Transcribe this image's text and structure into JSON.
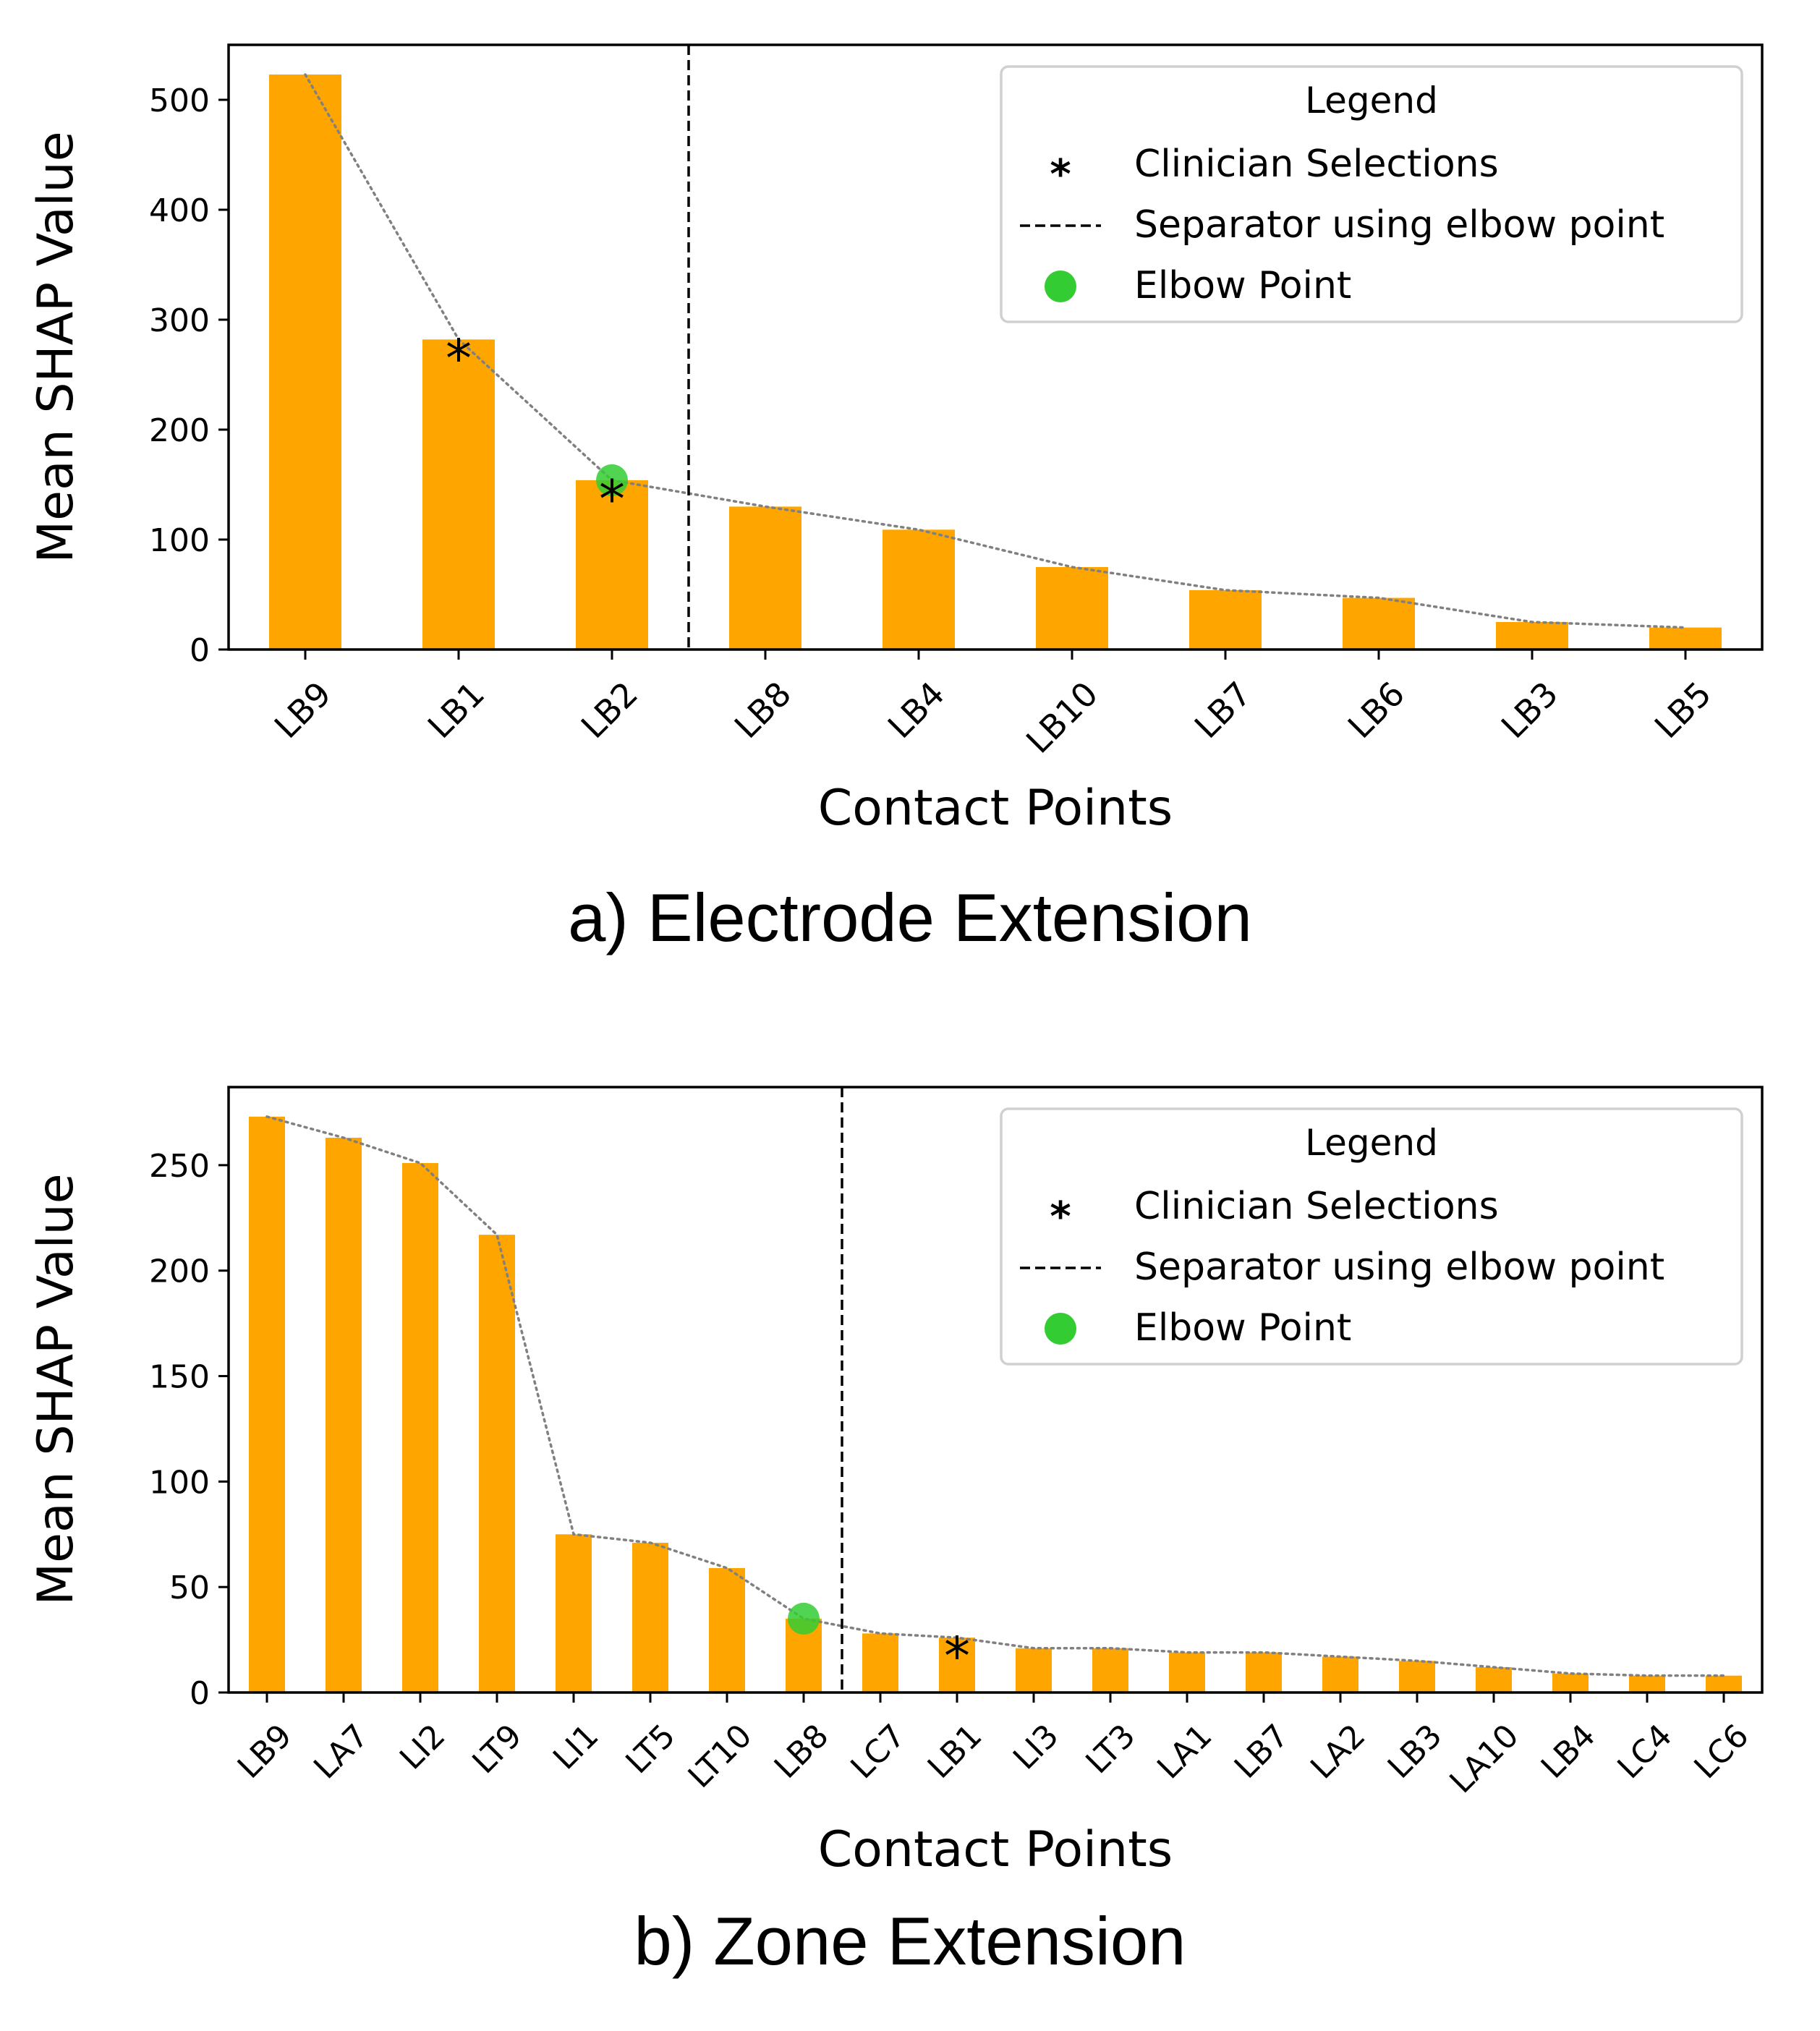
{
  "chart_data": [
    {
      "type": "bar",
      "caption": "a) Electrode Extension",
      "xlabel": "Contact Points",
      "ylabel": "Mean SHAP Value",
      "ylim": [
        0,
        550
      ],
      "yticks": [
        0,
        100,
        200,
        300,
        400,
        500
      ],
      "categories": [
        "LB9",
        "LB1",
        "LB2",
        "LB8",
        "LB4",
        "LB10",
        "LB7",
        "LB6",
        "LB3",
        "LB5"
      ],
      "values": [
        523,
        282,
        154,
        130,
        109,
        75,
        54,
        47,
        25,
        20
      ],
      "bar_color": "#ffa500",
      "trend_line": {
        "style": "dotted",
        "color": "#808080"
      },
      "clinician_selections": [
        {
          "category": "LB1",
          "value": 268
        },
        {
          "category": "LB2",
          "value": 140
        }
      ],
      "elbow_point": {
        "category": "LB2",
        "value": 154,
        "color": "#33cc33"
      },
      "separator_after_index": 2,
      "legend": {
        "title": "Legend",
        "position": "top-right",
        "entries": [
          "Clinician Selections",
          "Separator using elbow point",
          "Elbow Point"
        ]
      }
    },
    {
      "type": "bar",
      "caption": "b) Zone Extension",
      "xlabel": "Contact Points",
      "ylabel": "Mean SHAP Value",
      "ylim": [
        0,
        287
      ],
      "yticks": [
        0,
        50,
        100,
        150,
        200,
        250
      ],
      "categories": [
        "LB9",
        "LA7",
        "LI2",
        "LT9",
        "LI1",
        "LT5",
        "LT10",
        "LB8",
        "LC7",
        "LB1",
        "LI3",
        "LT3",
        "LA1",
        "LB7",
        "LA2",
        "LB3",
        "LA10",
        "LB4",
        "LC4",
        "LC6"
      ],
      "values": [
        273,
        263,
        251,
        217,
        75,
        71,
        59,
        35,
        28,
        26,
        21,
        21,
        19,
        19,
        17,
        15,
        12,
        9,
        8,
        8
      ],
      "bar_color": "#ffa500",
      "trend_line": {
        "style": "dotted",
        "color": "#808080"
      },
      "clinician_selections": [
        {
          "category": "LB1",
          "value": 19
        }
      ],
      "elbow_point": {
        "category": "LB8",
        "value": 35,
        "color": "#33cc33"
      },
      "separator_after_index": 7,
      "legend": {
        "title": "Legend",
        "position": "top-right",
        "entries": [
          "Clinician Selections",
          "Separator using elbow point",
          "Elbow Point"
        ]
      }
    }
  ]
}
